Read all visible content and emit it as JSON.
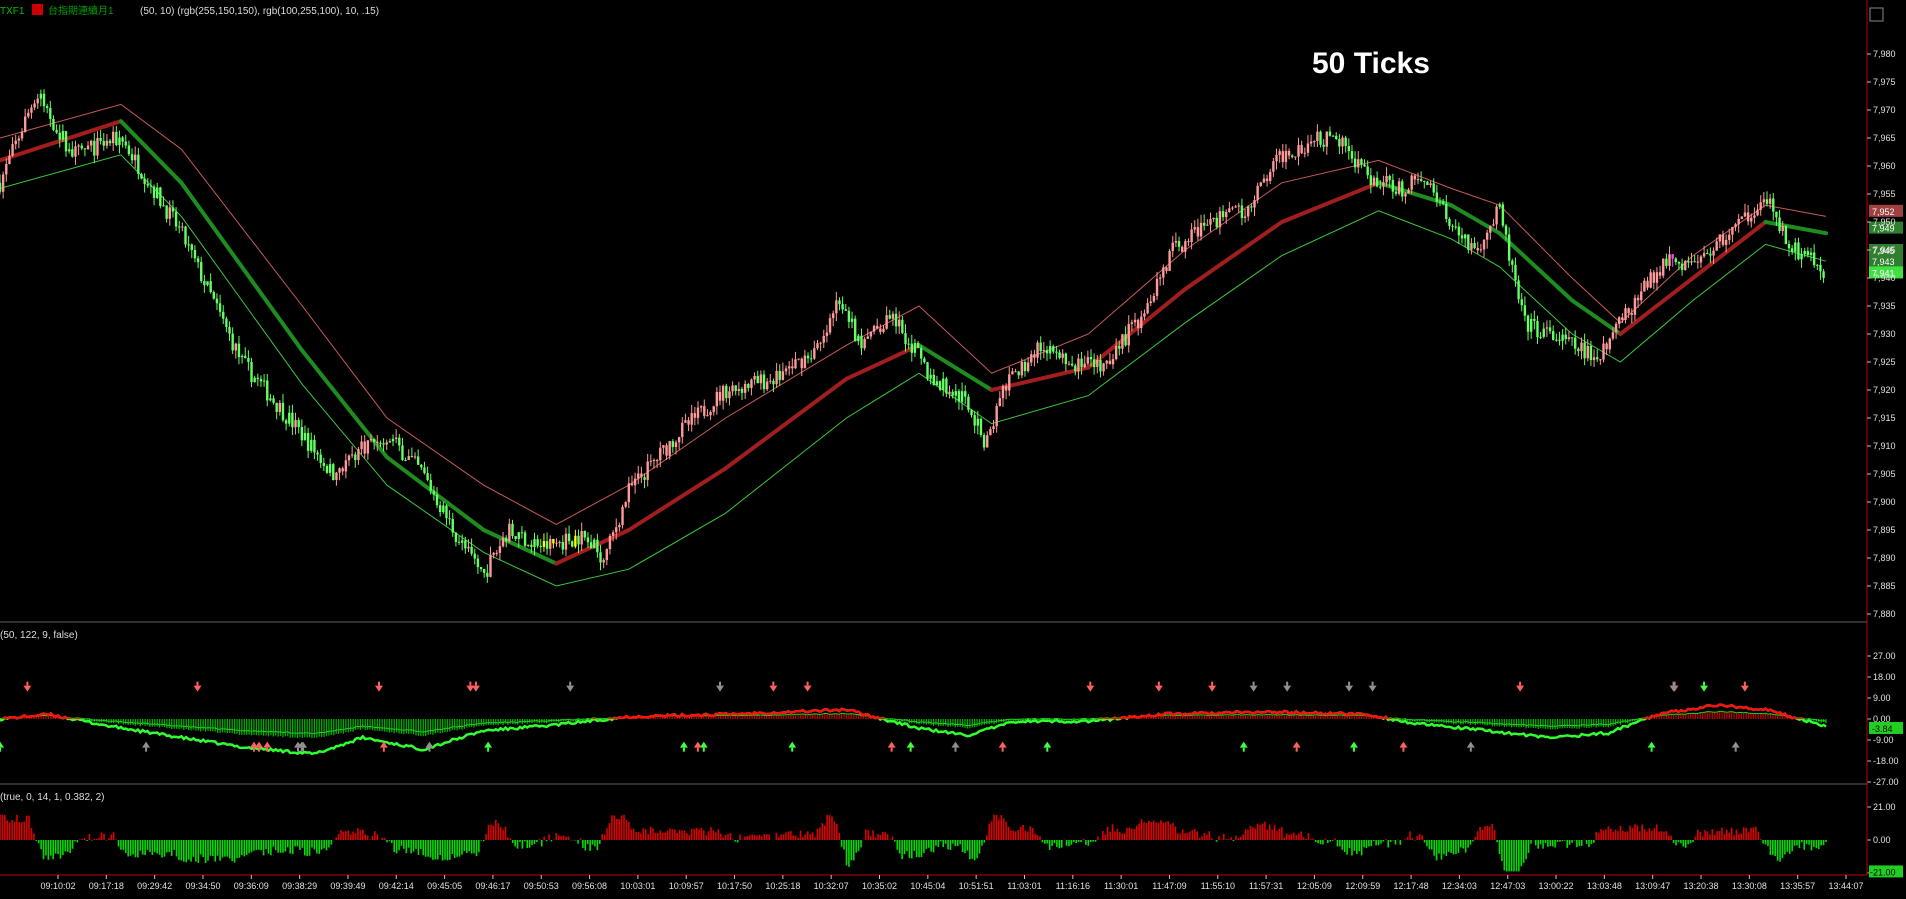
{
  "header": {
    "symbol": "TXF1",
    "symbol_name": "台指期連續月1",
    "params": "(50,  10)  (rgb(255,150,150),  rgb(100,255,100),  10,  .15)"
  },
  "annotation": "50 Ticks",
  "colors": {
    "background": "#000000",
    "up": "#ff9a9a",
    "down": "#64ff64",
    "upper_band": "#c85a5a",
    "lower_band": "#3cc83c",
    "mid_red": "#a01e1e",
    "mid_green": "#1e8c1e",
    "highlight": "#ffff00",
    "magenta": "#ff40ff",
    "neutral": "#909090",
    "axis_red": "#c00000"
  },
  "chart_data": [
    {
      "type": "candlestick",
      "title": "",
      "ylim": [
        7880,
        7985
      ],
      "yticks": [
        "7,880",
        "7,885",
        "7,890",
        "7,895",
        "7,900",
        "7,905",
        "7,910",
        "7,915",
        "7,920",
        "7,925",
        "7,930",
        "7,935",
        "7,940",
        "7,945",
        "7,950",
        "7,955",
        "7,960",
        "7,965",
        "7,970",
        "7,975",
        "7,980"
      ],
      "x_time_labels": [
        "09:10:02",
        "09:17:18",
        "09:29:42",
        "09:34:50",
        "09:36:09",
        "09:38:29",
        "09:39:49",
        "09:42:14",
        "09:45:05",
        "09:46:17",
        "09:50:53",
        "09:56:08",
        "10:03:01",
        "10:09:57",
        "10:17:50",
        "10:25:18",
        "10:32:07",
        "10:35:02",
        "10:45:04",
        "10:51:51",
        "11:03:01",
        "11:16:16",
        "11:30:01",
        "11:47:09",
        "11:55:10",
        "11:57:31",
        "12:05:09",
        "12:09:59",
        "12:17:48",
        "12:34:03",
        "12:47:03",
        "13:00:22",
        "13:03:48",
        "13:09:47",
        "13:20:38",
        "13:30:08",
        "13:35:57",
        "13:44:07"
      ],
      "price_path": [
        [
          0,
          7957
        ],
        [
          30,
          7973
        ],
        [
          60,
          7962
        ],
        [
          100,
          7965
        ],
        [
          150,
          7948
        ],
        [
          200,
          7925
        ],
        [
          250,
          7912
        ],
        [
          275,
          7905
        ],
        [
          300,
          7910
        ],
        [
          320,
          7912
        ],
        [
          350,
          7905
        ],
        [
          380,
          7893
        ],
        [
          400,
          7887
        ],
        [
          420,
          7895
        ],
        [
          450,
          7892
        ],
        [
          480,
          7894
        ],
        [
          500,
          7890
        ],
        [
          520,
          7902
        ],
        [
          560,
          7912
        ],
        [
          600,
          7920
        ],
        [
          640,
          7922
        ],
        [
          680,
          7928
        ],
        [
          695,
          7937
        ],
        [
          710,
          7928
        ],
        [
          740,
          7933
        ],
        [
          770,
          7922
        ],
        [
          800,
          7918
        ],
        [
          815,
          7910
        ],
        [
          830,
          7920
        ],
        [
          860,
          7928
        ],
        [
          880,
          7925
        ],
        [
          910,
          7924
        ],
        [
          940,
          7932
        ],
        [
          970,
          7945
        ],
        [
          1000,
          7950
        ],
        [
          1030,
          7952
        ],
        [
          1060,
          7962
        ],
        [
          1090,
          7965
        ],
        [
          1110,
          7964
        ],
        [
          1130,
          7958
        ],
        [
          1160,
          7956
        ],
        [
          1180,
          7958
        ],
        [
          1200,
          7950
        ],
        [
          1220,
          7945
        ],
        [
          1240,
          7952
        ],
        [
          1260,
          7932
        ],
        [
          1280,
          7930
        ],
        [
          1300,
          7928
        ],
        [
          1320,
          7926
        ],
        [
          1340,
          7932
        ],
        [
          1360,
          7938
        ],
        [
          1380,
          7944
        ],
        [
          1400,
          7942
        ],
        [
          1420,
          7946
        ],
        [
          1440,
          7950
        ],
        [
          1460,
          7955
        ],
        [
          1480,
          7946
        ],
        [
          1500,
          7943
        ],
        [
          1510,
          7941
        ]
      ],
      "upper_band": [
        [
          0,
          7965
        ],
        [
          100,
          7971
        ],
        [
          150,
          7963
        ],
        [
          250,
          7935
        ],
        [
          320,
          7915
        ],
        [
          400,
          7903
        ],
        [
          460,
          7896
        ],
        [
          520,
          7903
        ],
        [
          600,
          7915
        ],
        [
          700,
          7928
        ],
        [
          760,
          7935
        ],
        [
          820,
          7923
        ],
        [
          900,
          7930
        ],
        [
          980,
          7945
        ],
        [
          1060,
          7957
        ],
        [
          1140,
          7961
        ],
        [
          1200,
          7956
        ],
        [
          1240,
          7953
        ],
        [
          1300,
          7940
        ],
        [
          1340,
          7932
        ],
        [
          1400,
          7944
        ],
        [
          1460,
          7953
        ],
        [
          1510,
          7951
        ]
      ],
      "mid_band": [
        [
          0,
          7961
        ],
        [
          100,
          7968
        ],
        [
          150,
          7957
        ],
        [
          250,
          7927
        ],
        [
          320,
          7908
        ],
        [
          400,
          7895
        ],
        [
          460,
          7889
        ],
        [
          520,
          7895
        ],
        [
          600,
          7906
        ],
        [
          700,
          7922
        ],
        [
          760,
          7928
        ],
        [
          820,
          7920
        ],
        [
          900,
          7924
        ],
        [
          980,
          7938
        ],
        [
          1060,
          7950
        ],
        [
          1140,
          7957
        ],
        [
          1200,
          7953
        ],
        [
          1240,
          7948
        ],
        [
          1300,
          7936
        ],
        [
          1340,
          7930
        ],
        [
          1400,
          7940
        ],
        [
          1460,
          7950
        ],
        [
          1510,
          7948
        ]
      ],
      "lower_band": [
        [
          0,
          7956
        ],
        [
          100,
          7962
        ],
        [
          150,
          7951
        ],
        [
          250,
          7921
        ],
        [
          320,
          7903
        ],
        [
          400,
          7891
        ],
        [
          460,
          7885
        ],
        [
          520,
          7888
        ],
        [
          600,
          7898
        ],
        [
          700,
          7915
        ],
        [
          760,
          7923
        ],
        [
          820,
          7914
        ],
        [
          900,
          7919
        ],
        [
          980,
          7932
        ],
        [
          1060,
          7944
        ],
        [
          1140,
          7952
        ],
        [
          1200,
          7947
        ],
        [
          1240,
          7942
        ],
        [
          1300,
          7930
        ],
        [
          1340,
          7925
        ],
        [
          1400,
          7936
        ],
        [
          1460,
          7946
        ],
        [
          1510,
          7943
        ]
      ],
      "price_tags": [
        "7,952",
        "7,949",
        "7,945",
        "7,943",
        "7,941"
      ]
    },
    {
      "type": "oscillator",
      "params": "(50,  122,  9,  false)",
      "ylim": [
        -27,
        27
      ],
      "yticks": [
        "27.00",
        "18.00",
        "9.00",
        "0.00",
        "-9.00",
        "-18.00",
        "-27.00"
      ],
      "value_tag": "-3.84",
      "line_path": [
        [
          0,
          0
        ],
        [
          40,
          2
        ],
        [
          90,
          -3
        ],
        [
          150,
          -8
        ],
        [
          200,
          -12
        ],
        [
          260,
          -15
        ],
        [
          300,
          -8
        ],
        [
          350,
          -13
        ],
        [
          400,
          -5
        ],
        [
          450,
          -3
        ],
        [
          520,
          1
        ],
        [
          600,
          2
        ],
        [
          700,
          4
        ],
        [
          760,
          -4
        ],
        [
          800,
          -7
        ],
        [
          840,
          -1
        ],
        [
          900,
          -1
        ],
        [
          960,
          2
        ],
        [
          1050,
          3
        ],
        [
          1130,
          2
        ],
        [
          1170,
          -2
        ],
        [
          1230,
          -5
        ],
        [
          1280,
          -8
        ],
        [
          1330,
          -6
        ],
        [
          1370,
          2
        ],
        [
          1420,
          6
        ],
        [
          1460,
          4
        ],
        [
          1510,
          -3
        ]
      ]
    },
    {
      "type": "histogram",
      "params": "(true,  0,  14,  1,  0.382,  2)",
      "ylim": [
        -21,
        21
      ],
      "yticks": [
        "21.00",
        "0.00",
        "-21.00"
      ],
      "value_tag": "-21.00"
    }
  ]
}
